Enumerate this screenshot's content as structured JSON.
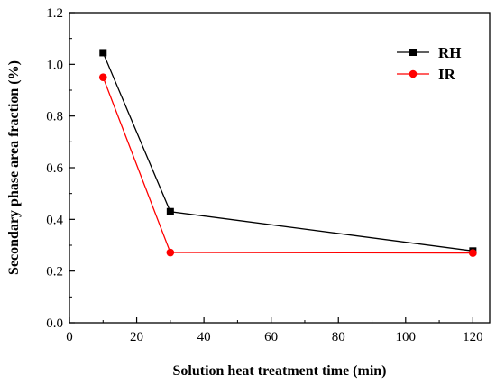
{
  "chart_data": {
    "type": "line",
    "xlabel": "Solution heat treatment time (min)",
    "ylabel": "Secondary phase area fraction (%)",
    "xlim": [
      0,
      125
    ],
    "ylim": [
      0.0,
      1.2
    ],
    "xticks": [
      0,
      20,
      40,
      60,
      80,
      100,
      120
    ],
    "yticks": [
      0.0,
      0.2,
      0.4,
      0.6,
      0.8,
      1.0,
      1.2
    ],
    "xtick_labels": [
      "0",
      "20",
      "40",
      "60",
      "80",
      "100",
      "120"
    ],
    "ytick_labels": [
      "0.0",
      "0.2",
      "0.4",
      "0.6",
      "0.8",
      "1.0",
      "1.2"
    ],
    "grid": false,
    "legend": "top-right",
    "series": [
      {
        "name": "RH",
        "color": "#000000",
        "marker": "square",
        "x": [
          10,
          30,
          120
        ],
        "y": [
          1.045,
          0.43,
          0.278
        ]
      },
      {
        "name": "IR",
        "color": "#ff0000",
        "marker": "circle",
        "x": [
          10,
          30,
          120
        ],
        "y": [
          0.95,
          0.272,
          0.27
        ]
      }
    ]
  }
}
